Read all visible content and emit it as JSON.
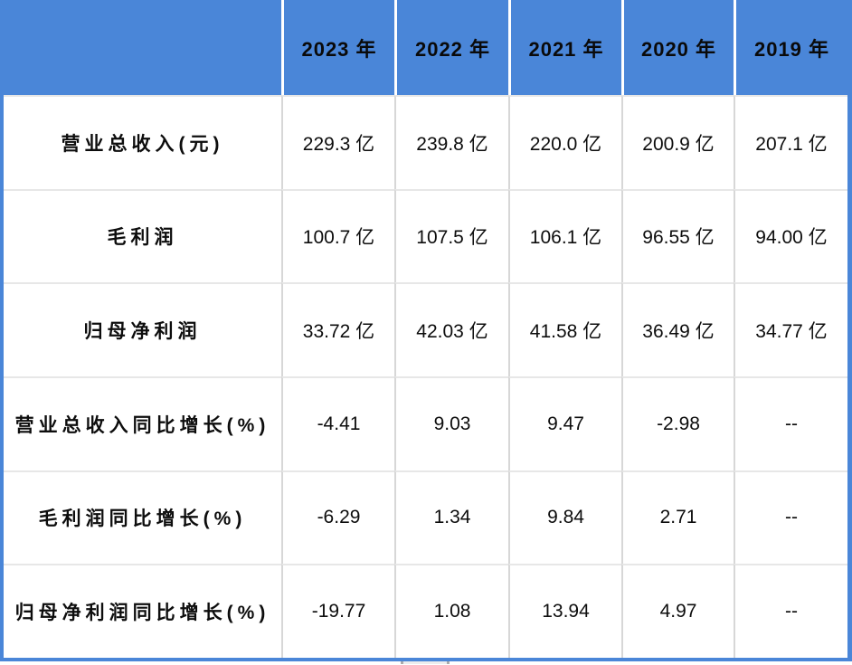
{
  "chart_data": {
    "type": "table",
    "title": "",
    "corner_label": "",
    "columns": [
      "2023 年",
      "2022 年",
      "2021 年",
      "2020 年",
      "2019 年"
    ],
    "rows": [
      {
        "label": "营业总收入(元)",
        "values": [
          "229.3 亿",
          "239.8 亿",
          "220.0 亿",
          "200.9 亿",
          "207.1 亿"
        ]
      },
      {
        "label": "毛利润",
        "values": [
          "100.7 亿",
          "107.5 亿",
          "106.1 亿",
          "96.55 亿",
          "94.00 亿"
        ]
      },
      {
        "label": "归母净利润",
        "values": [
          "33.72 亿",
          "42.03 亿",
          "41.58 亿",
          "36.49 亿",
          "34.77 亿"
        ]
      },
      {
        "label": "营业总收入同比增长(%)",
        "values": [
          "-4.41",
          "9.03",
          "9.47",
          "-2.98",
          "--"
        ]
      },
      {
        "label": "毛利润同比增长(%)",
        "values": [
          "-6.29",
          "1.34",
          "9.84",
          "2.71",
          "--"
        ]
      },
      {
        "label": "归母净利润同比增长(%)",
        "values": [
          "-19.77",
          "1.08",
          "13.94",
          "4.97",
          "--"
        ]
      }
    ],
    "na_symbol": "--",
    "layout": {
      "grid": "on",
      "header_position": "top"
    }
  },
  "colors": {
    "header_bg": "#4a86d8",
    "outer_border": "#4a86d8",
    "header_divider": "#ffffff",
    "grid_vertical": "#d7d7d7",
    "grid_horizontal": "#e7e7e7",
    "text": "#0d0d0d",
    "cell_bg": "#ffffff"
  }
}
